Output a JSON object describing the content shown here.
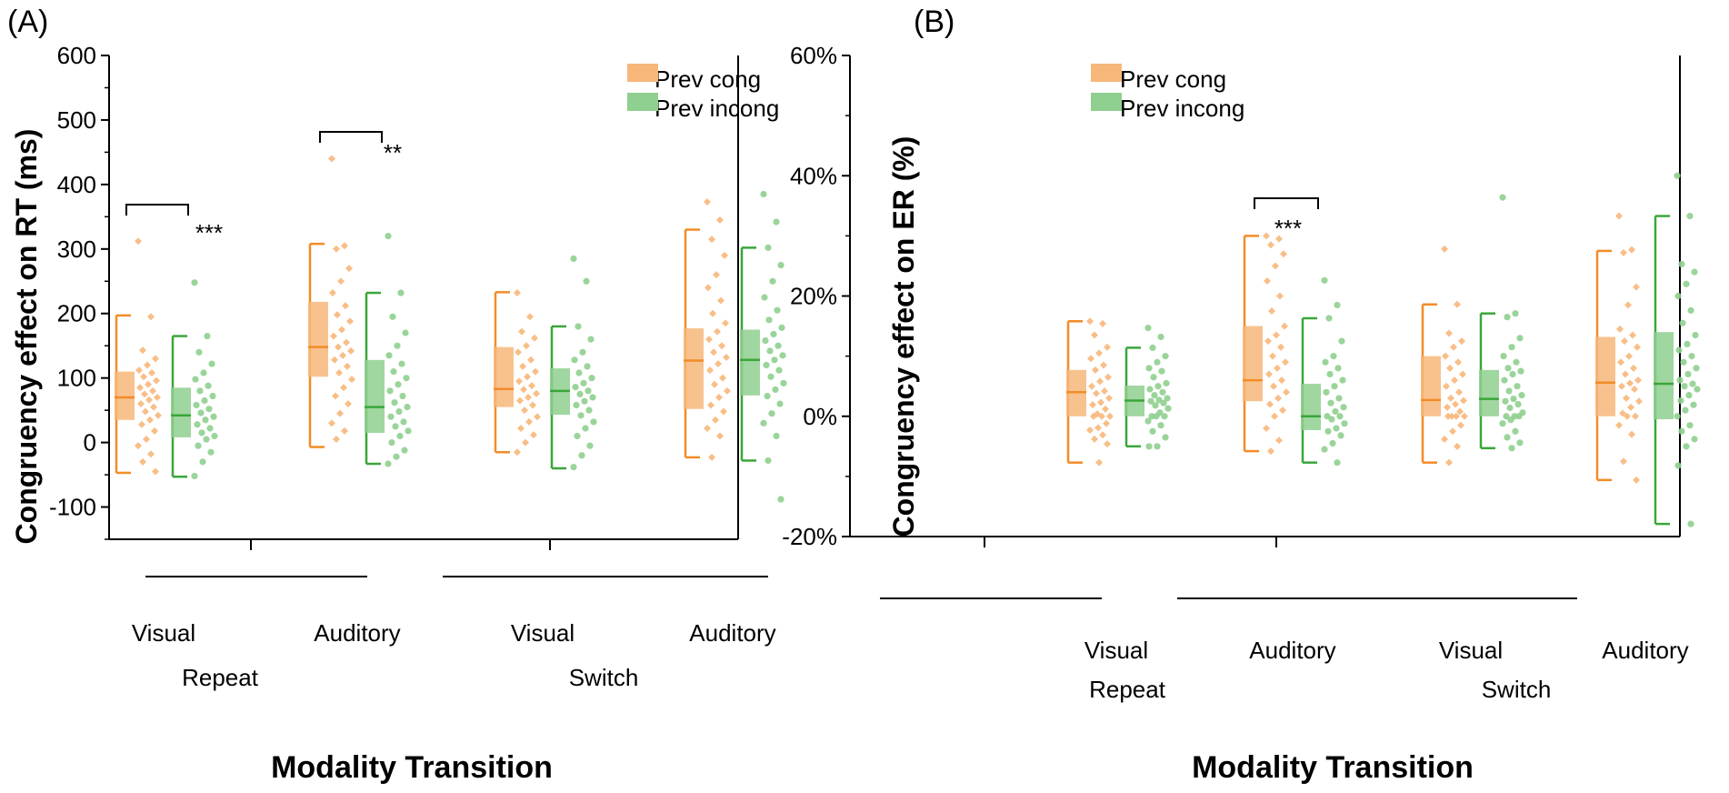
{
  "colors": {
    "prev_cong": "#f28c28",
    "prev_cong_fill": "#f7b77a",
    "prev_incong": "#3aa63a",
    "prev_incong_fill": "#8fcf8f"
  },
  "chart_data": [
    {
      "type": "box",
      "panel_label": "(A)",
      "ylabel": "Congruency effect on RT (ms)",
      "xlabel": "Modality Transition",
      "ylim": [
        -150,
        600
      ],
      "yticks": [
        -100,
        0,
        100,
        200,
        300,
        400,
        500,
        600
      ],
      "ytick_labels": [
        "-100",
        "0",
        "100",
        "200",
        "300",
        "400",
        "500",
        "600"
      ],
      "groups": [
        {
          "label": "Repeat",
          "categories": [
            "Visual",
            "Auditory"
          ]
        },
        {
          "label": "Switch",
          "categories": [
            "Visual",
            "Auditory"
          ]
        }
      ],
      "legend": [
        "Prev cong",
        "Prev incong"
      ],
      "series": [
        {
          "name": "Prev cong",
          "boxes": [
            {
              "whisker_low": -47,
              "q1": 35,
              "median": 70,
              "q3": 110,
              "whisker_high": 197,
              "points": [
                312,
                195,
                143,
                130,
                120,
                112,
                108,
                102,
                96,
                90,
                85,
                80,
                75,
                70,
                66,
                60,
                55,
                48,
                42,
                35,
                28,
                18,
                5,
                -5,
                -18,
                -30,
                -45
              ]
            },
            {
              "whisker_low": -7,
              "q1": 102,
              "median": 148,
              "q3": 218,
              "whisker_high": 308,
              "points": [
                440,
                305,
                300,
                270,
                250,
                232,
                212,
                198,
                188,
                175,
                165,
                155,
                148,
                142,
                135,
                128,
                118,
                108,
                98,
                85,
                72,
                60,
                45,
                30,
                18,
                5
              ]
            },
            {
              "whisker_low": -15,
              "q1": 55,
              "median": 83,
              "q3": 148,
              "whisker_high": 233,
              "points": [
                232,
                195,
                172,
                162,
                150,
                140,
                128,
                118,
                110,
                102,
                95,
                88,
                82,
                76,
                70,
                65,
                58,
                50,
                40,
                32,
                22,
                12,
                0,
                -15
              ]
            },
            {
              "whisker_low": -23,
              "q1": 52,
              "median": 127,
              "q3": 177,
              "whisker_high": 330,
              "points": [
                373,
                345,
                315,
                290,
                260,
                240,
                220,
                200,
                185,
                172,
                160,
                150,
                140,
                132,
                122,
                112,
                100,
                90,
                80,
                70,
                58,
                48,
                35,
                22,
                10,
                -23
              ]
            }
          ]
        },
        {
          "name": "Prev incong",
          "boxes": [
            {
              "whisker_low": -53,
              "q1": 8,
              "median": 42,
              "q3": 85,
              "whisker_high": 165,
              "points": [
                248,
                165,
                140,
                122,
                108,
                98,
                88,
                80,
                72,
                65,
                58,
                52,
                46,
                40,
                35,
                28,
                22,
                15,
                10,
                5,
                -5,
                -15,
                -30,
                -52
              ]
            },
            {
              "whisker_low": -33,
              "q1": 15,
              "median": 55,
              "q3": 128,
              "whisker_high": 232,
              "points": [
                320,
                232,
                195,
                170,
                150,
                135,
                122,
                110,
                100,
                90,
                80,
                72,
                62,
                55,
                48,
                40,
                32,
                25,
                18,
                10,
                0,
                -12,
                -22,
                -33
              ]
            },
            {
              "whisker_low": -40,
              "q1": 43,
              "median": 80,
              "q3": 115,
              "whisker_high": 180,
              "points": [
                285,
                250,
                180,
                160,
                140,
                128,
                118,
                108,
                100,
                92,
                86,
                80,
                75,
                70,
                64,
                58,
                50,
                42,
                32,
                22,
                10,
                -5,
                -20,
                -38
              ]
            },
            {
              "whisker_low": -28,
              "q1": 73,
              "median": 128,
              "q3": 175,
              "whisker_high": 302,
              "points": [
                385,
                342,
                302,
                275,
                250,
                225,
                205,
                190,
                178,
                168,
                158,
                150,
                142,
                135,
                128,
                120,
                112,
                102,
                92,
                82,
                72,
                60,
                45,
                30,
                10,
                -28,
                -88
              ]
            }
          ]
        }
      ],
      "significance": [
        {
          "category": "Repeat Visual",
          "label": "***"
        },
        {
          "category": "Repeat Auditory",
          "label": "**"
        }
      ]
    },
    {
      "type": "box",
      "panel_label": "(B)",
      "ylabel": "Congruency effect on ER (%)",
      "xlabel": "Modality Transition",
      "ylim": [
        -20,
        60
      ],
      "yticks": [
        -20,
        0,
        20,
        40,
        60
      ],
      "ytick_labels": [
        "-20%",
        "0%",
        "20%",
        "40%",
        "60%"
      ],
      "groups": [
        {
          "label": "Repeat",
          "categories": [
            "Visual",
            "Auditory"
          ]
        },
        {
          "label": "Switch",
          "categories": [
            "Visual",
            "Auditory"
          ]
        }
      ],
      "legend": [
        "Prev cong",
        "Prev incong"
      ],
      "series": [
        {
          "name": "Prev cong",
          "boxes": [
            {
              "whisker_low": -7.7,
              "q1": 0,
              "median": 4,
              "q3": 7.7,
              "whisker_high": 15.8,
              "points": [
                15.8,
                15.4,
                13.5,
                11.5,
                10.5,
                9.6,
                8.5,
                7.7,
                6.5,
                5.8,
                5,
                4.2,
                3.8,
                3,
                2.3,
                1.9,
                1.2,
                0.4,
                0,
                0,
                0,
                -1.2,
                -1.9,
                -2.3,
                -3.1,
                -3.8,
                -4.6,
                -7.7
              ]
            },
            {
              "whisker_low": -5.8,
              "q1": 2.5,
              "median": 6,
              "q3": 15,
              "whisker_high": 30,
              "points": [
                30,
                29.5,
                28.5,
                27,
                25,
                22.5,
                20,
                17.5,
                15,
                13.5,
                12.5,
                11.5,
                10,
                9,
                8,
                7,
                6,
                5,
                4,
                3,
                2,
                1,
                0,
                -2,
                -4,
                -5.8
              ]
            },
            {
              "whisker_low": -7.7,
              "q1": 0,
              "median": 2.7,
              "q3": 10,
              "whisker_high": 18.6,
              "points": [
                27.8,
                18.6,
                13.8,
                12.5,
                11.5,
                10,
                9,
                8,
                7,
                6,
                5,
                4,
                3,
                2.6,
                2,
                1.5,
                0.8,
                0,
                0,
                0,
                0,
                -1.5,
                -2.5,
                -3.8,
                -5,
                -7.7
              ]
            },
            {
              "whisker_low": -10.6,
              "q1": 0,
              "median": 5.6,
              "q3": 13.2,
              "whisker_high": 27.5,
              "points": [
                33.3,
                27.7,
                27.2,
                21.5,
                18.5,
                14.5,
                13.5,
                12.5,
                11.5,
                10,
                9,
                8,
                7,
                6,
                5.5,
                5,
                4.5,
                3,
                2.5,
                1.5,
                0.5,
                0,
                0,
                -1.5,
                -3,
                -7.5,
                -10.6
              ]
            }
          ]
        },
        {
          "name": "Prev incong",
          "boxes": [
            {
              "whisker_low": -5,
              "q1": 0,
              "median": 2.6,
              "q3": 5.1,
              "whisker_high": 11.4,
              "points": [
                14.7,
                13.2,
                11.4,
                10,
                9,
                8,
                7.5,
                6.5,
                5.5,
                5,
                4.5,
                4,
                3.5,
                3,
                2.7,
                2.5,
                2.2,
                1.8,
                1.3,
                0.6,
                0,
                0,
                0,
                -0.8,
                -1.5,
                -2.5,
                -3.5,
                -5,
                -5
              ]
            },
            {
              "whisker_low": -7.7,
              "q1": -2.3,
              "median": 0,
              "q3": 5.4,
              "whisker_high": 16.3,
              "points": [
                22.6,
                18.5,
                16.3,
                12.5,
                10,
                9,
                8,
                7,
                6,
                5,
                4,
                3,
                2.2,
                1.5,
                0.8,
                0,
                0,
                -0.5,
                -1.2,
                -2,
                -2.5,
                -3.2,
                -4.5,
                -5.5,
                -7.7
              ]
            },
            {
              "whisker_low": -5.3,
              "q1": 0,
              "median": 2.9,
              "q3": 7.7,
              "whisker_high": 17.1,
              "points": [
                36.4,
                17.1,
                16.5,
                13,
                11.5,
                10,
                9,
                8,
                7.5,
                7,
                6,
                5,
                4.2,
                3.5,
                2.9,
                2.5,
                2,
                1.4,
                0.6,
                0,
                0,
                0,
                -0.6,
                -1.2,
                -2.5,
                -3.5,
                -4.4,
                -5.3
              ]
            },
            {
              "whisker_low": -17.9,
              "q1": -0.5,
              "median": 5.4,
              "q3": 14,
              "whisker_high": 33.3,
              "points": [
                40,
                33.3,
                25.3,
                24,
                22,
                20,
                17.6,
                15.5,
                13.5,
                12,
                11,
                10,
                9,
                8,
                7,
                6,
                5.4,
                5,
                4.5,
                3.5,
                2.6,
                1.9,
                1,
                0,
                -1.5,
                -2.5,
                -3.8,
                -5,
                -8.2,
                -17.9
              ]
            }
          ]
        }
      ],
      "significance": [
        {
          "category": "Repeat Auditory",
          "label": "***"
        }
      ]
    }
  ]
}
